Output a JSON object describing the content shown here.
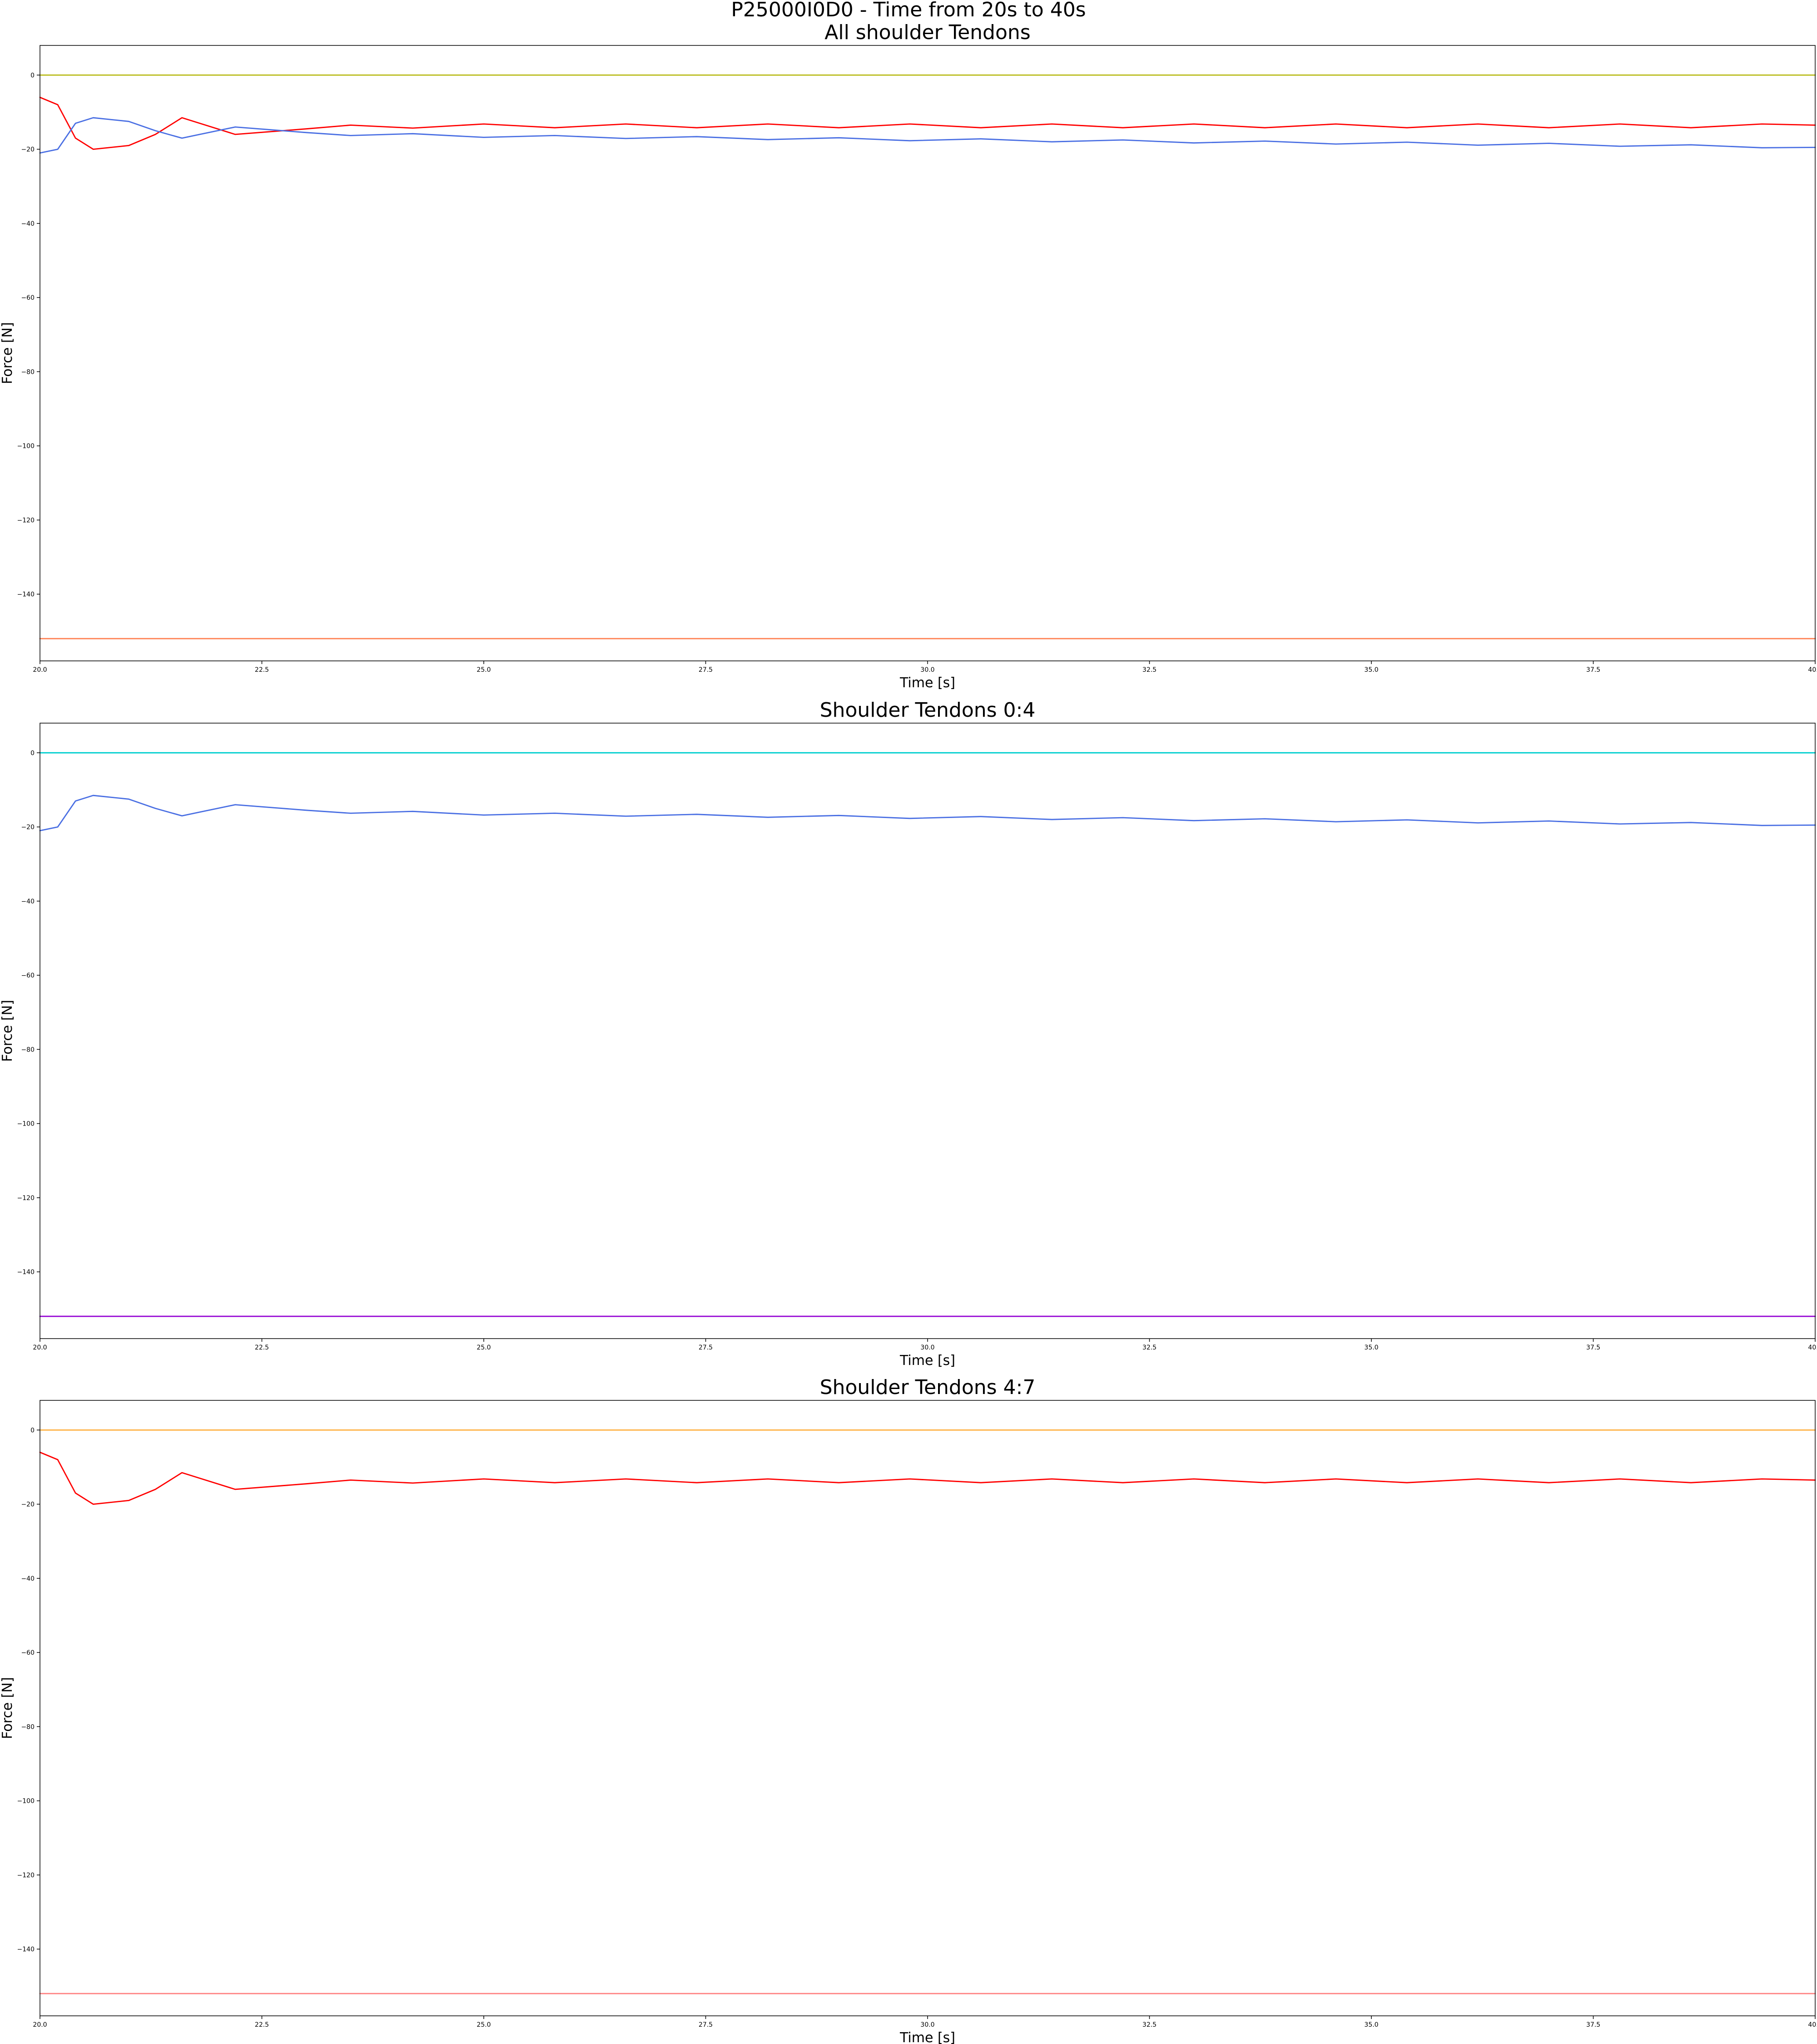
{
  "figure": {
    "title": "P25000I0D0 - Time from 20s to 40s"
  },
  "chart_data": [
    {
      "type": "line",
      "title": "All shoulder Tendons",
      "xlabel": "Time [s]",
      "ylabel": "Force [N]",
      "xlim": [
        20,
        40
      ],
      "ylim": [
        -158,
        8
      ],
      "xticks": [
        "20.0",
        "22.5",
        "25.0",
        "27.5",
        "30.0",
        "32.5",
        "35.0",
        "37.5",
        "40.0"
      ],
      "yticks": [
        "0",
        "−20",
        "−40",
        "−60",
        "−80",
        "−100",
        "−120",
        "−140"
      ],
      "grid": false,
      "series": [
        {
          "color": "#bcbd22",
          "x": [
            20,
            40
          ],
          "y": [
            0,
            0
          ]
        },
        {
          "color": "#ff0000",
          "x": [
            20.0,
            20.2,
            20.4,
            20.6,
            21.0,
            21.3,
            21.6,
            21.8,
            22.2,
            23.0,
            23.5,
            24.2,
            25.0,
            25.8,
            26.6,
            27.4,
            28.2,
            29.0,
            29.8,
            30.6,
            31.4,
            32.2,
            33.0,
            33.8,
            34.6,
            35.4,
            36.2,
            37.0,
            37.8,
            38.6,
            39.4,
            40.0
          ],
          "y": [
            -6,
            -8,
            -17,
            -20,
            -19,
            -16,
            -11.5,
            -13,
            -16,
            -14.5,
            -13.5,
            -14.3,
            -13.2,
            -14.2,
            -13.2,
            -14.2,
            -13.2,
            -14.2,
            -13.2,
            -14.2,
            -13.2,
            -14.2,
            -13.2,
            -14.2,
            -13.2,
            -14.2,
            -13.2,
            -14.2,
            -13.2,
            -14.2,
            -13.2,
            -13.5
          ]
        },
        {
          "color": "#4a6fe3",
          "x": [
            20.0,
            20.2,
            20.4,
            20.6,
            21.0,
            21.3,
            21.6,
            21.8,
            22.2,
            23.0,
            23.5,
            24.2,
            25.0,
            25.8,
            26.6,
            27.4,
            28.2,
            29.0,
            29.8,
            30.6,
            31.4,
            32.2,
            33.0,
            33.8,
            34.6,
            35.4,
            36.2,
            37.0,
            37.8,
            38.6,
            39.4,
            40.0
          ],
          "y": [
            -21,
            -20,
            -13,
            -11.5,
            -12.5,
            -15,
            -17,
            -16,
            -14,
            -15.5,
            -16.3,
            -15.8,
            -16.8,
            -16.3,
            -17.1,
            -16.6,
            -17.4,
            -16.9,
            -17.7,
            -17.2,
            -18.0,
            -17.5,
            -18.3,
            -17.8,
            -18.6,
            -18.1,
            -18.9,
            -18.4,
            -19.2,
            -18.8,
            -19.6,
            -19.5
          ]
        },
        {
          "color": "#ff7f50",
          "x": [
            20,
            40
          ],
          "y": [
            -152,
            -152
          ]
        }
      ]
    },
    {
      "type": "line",
      "title": "Shoulder Tendons 0:4",
      "xlabel": "Time [s]",
      "ylabel": "Force [N]",
      "xlim": [
        20,
        40
      ],
      "ylim": [
        -158,
        8
      ],
      "xticks": [
        "20.0",
        "22.5",
        "25.0",
        "27.5",
        "30.0",
        "32.5",
        "35.0",
        "37.5",
        "40.0"
      ],
      "yticks": [
        "0",
        "−20",
        "−40",
        "−60",
        "−80",
        "−100",
        "−120",
        "−140"
      ],
      "grid": false,
      "series": [
        {
          "color": "#00cfcf",
          "x": [
            20,
            40
          ],
          "y": [
            0,
            0
          ]
        },
        {
          "color": "#4a6fe3",
          "x": [
            20.0,
            20.2,
            20.4,
            20.6,
            21.0,
            21.3,
            21.6,
            21.8,
            22.2,
            23.0,
            23.5,
            24.2,
            25.0,
            25.8,
            26.6,
            27.4,
            28.2,
            29.0,
            29.8,
            30.6,
            31.4,
            32.2,
            33.0,
            33.8,
            34.6,
            35.4,
            36.2,
            37.0,
            37.8,
            38.6,
            39.4,
            40.0
          ],
          "y": [
            -21,
            -20,
            -13,
            -11.5,
            -12.5,
            -15,
            -17,
            -16,
            -14,
            -15.5,
            -16.3,
            -15.8,
            -16.8,
            -16.3,
            -17.1,
            -16.6,
            -17.4,
            -16.9,
            -17.7,
            -17.2,
            -18.0,
            -17.5,
            -18.3,
            -17.8,
            -18.6,
            -18.1,
            -18.9,
            -18.4,
            -19.2,
            -18.8,
            -19.6,
            -19.5
          ]
        },
        {
          "color": "#9400d3",
          "x": [
            20,
            40
          ],
          "y": [
            -152,
            -152
          ]
        }
      ]
    },
    {
      "type": "line",
      "title": "Shoulder Tendons 4:7",
      "xlabel": "Time [s]",
      "ylabel": "Force [N]",
      "xlim": [
        20,
        40
      ],
      "ylim": [
        -158,
        8
      ],
      "xticks": [
        "20.0",
        "22.5",
        "25.0",
        "27.5",
        "30.0",
        "32.5",
        "35.0",
        "37.5",
        "40.0"
      ],
      "yticks": [
        "0",
        "−20",
        "−40",
        "−60",
        "−80",
        "−100",
        "−120",
        "−140"
      ],
      "grid": false,
      "series": [
        {
          "color": "#ffb347",
          "x": [
            20,
            40
          ],
          "y": [
            0,
            0
          ]
        },
        {
          "color": "#ff0000",
          "x": [
            20.0,
            20.2,
            20.4,
            20.6,
            21.0,
            21.3,
            21.6,
            21.8,
            22.2,
            23.0,
            23.5,
            24.2,
            25.0,
            25.8,
            26.6,
            27.4,
            28.2,
            29.0,
            29.8,
            30.6,
            31.4,
            32.2,
            33.0,
            33.8,
            34.6,
            35.4,
            36.2,
            37.0,
            37.8,
            38.6,
            39.4,
            40.0
          ],
          "y": [
            -6,
            -8,
            -17,
            -20,
            -19,
            -16,
            -11.5,
            -13,
            -16,
            -14.5,
            -13.5,
            -14.3,
            -13.2,
            -14.2,
            -13.2,
            -14.2,
            -13.2,
            -14.2,
            -13.2,
            -14.2,
            -13.2,
            -14.2,
            -13.2,
            -14.2,
            -13.2,
            -14.2,
            -13.2,
            -14.2,
            -13.2,
            -14.2,
            -13.2,
            -13.5
          ]
        },
        {
          "color": "#ff8080",
          "x": [
            20,
            40
          ],
          "y": [
            -152,
            -152
          ]
        }
      ]
    }
  ]
}
